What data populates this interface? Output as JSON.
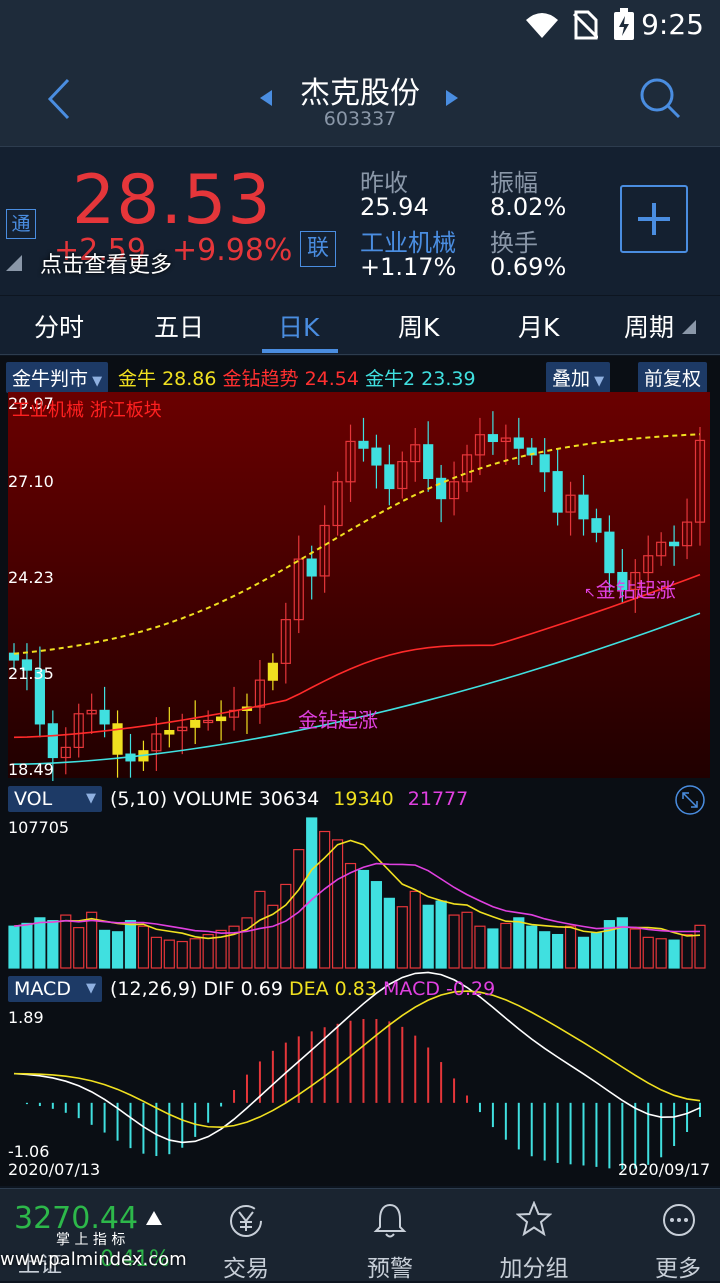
{
  "status": {
    "time": "9:25"
  },
  "nav": {
    "title": "杰克股份",
    "code": "603337"
  },
  "quote": {
    "price": "28.53",
    "change": "+2.59",
    "change_pct": "+9.98%",
    "tong_badge": "通",
    "lian_badge": "联",
    "overlay_text": "点击查看更多",
    "prev_close_label": "昨收",
    "prev_close": "25.94",
    "amplitude_label": "振幅",
    "amplitude": "8.02%",
    "sector_label": "工业机械",
    "sector_change": "+1.17%",
    "turnover_label": "换手",
    "turnover": "0.69%"
  },
  "tabs": [
    "分时",
    "五日",
    "日K",
    "周K",
    "月K",
    "周期"
  ],
  "active_tab": 2,
  "indicator": {
    "name": "金牛判市",
    "items": [
      {
        "label": "金牛",
        "value": "28.86",
        "color": "#f0e020"
      },
      {
        "label": "金钻趋势",
        "value": "24.54",
        "color": "#ff3030"
      },
      {
        "label": "金牛2",
        "value": "23.39",
        "color": "#40e0e0"
      }
    ],
    "overlay_btn": "叠加",
    "adjust_btn": "前复权"
  },
  "main_chart": {
    "y_labels": [
      "29.97",
      "27.10",
      "24.23",
      "21.35",
      "18.49"
    ],
    "board_text": "工业机械 浙江板块",
    "signal_1": "金钻起涨",
    "signal_2": "金钻起涨"
  },
  "volume": {
    "name": "VOL",
    "params": "(5,10) VOLUME",
    "volume": "30634",
    "ma5": "19340",
    "ma10": "21777",
    "max_label": "107705"
  },
  "macd": {
    "name": "MACD",
    "params": "(12,26,9) DIF",
    "dif": "0.69",
    "dea_label": "DEA",
    "dea": "0.83",
    "macd_label": "MACD",
    "macd": "-0.29",
    "max_label": "1.89",
    "min_label": "-1.06",
    "start_date": "2020/07/13",
    "end_date": "2020/09/17"
  },
  "bottom": {
    "index_value": "3270.44",
    "index_name": "上证",
    "index_change": "0.41%",
    "watermark_title": "掌 上 指 标",
    "watermark": "www.palmindex.com",
    "items": [
      {
        "label": "交易",
        "icon": "yen-icon"
      },
      {
        "label": "预警",
        "icon": "bell-icon"
      },
      {
        "label": "加分组",
        "icon": "star-icon"
      },
      {
        "label": "更多",
        "icon": "more-icon"
      }
    ]
  },
  "colors": {
    "up": "#e5363a",
    "down": "#40e0e0",
    "yellow": "#f0e020",
    "magenta": "#e040e0"
  }
}
